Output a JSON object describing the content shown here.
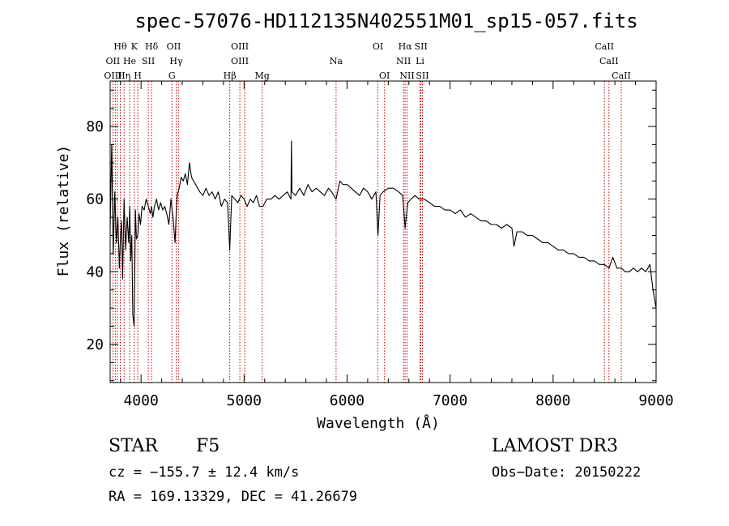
{
  "chart_data": {
    "type": "line",
    "title": "spec-57076-HD112135N402551M01_sp15-057.fits",
    "xlabel": "Wavelength (Å)",
    "ylabel": "Flux (relative)",
    "xlim": [
      3700,
      9000
    ],
    "ylim": [
      9.5,
      92.5
    ],
    "xticks": [
      4000,
      5000,
      6000,
      7000,
      8000,
      9000
    ],
    "yticks": [
      20,
      40,
      60,
      80
    ],
    "x_minor_step": 200,
    "y_minor_step": 5,
    "grid": false,
    "series": [
      {
        "name": "flux",
        "x": [
          3700,
          3715,
          3730,
          3745,
          3760,
          3775,
          3790,
          3800,
          3810,
          3820,
          3835,
          3850,
          3865,
          3880,
          3890,
          3900,
          3910,
          3920,
          3933,
          3945,
          3955,
          3968,
          3980,
          3995,
          4010,
          4030,
          4050,
          4070,
          4090,
          4101,
          4115,
          4130,
          4150,
          4170,
          4190,
          4210,
          4230,
          4250,
          4270,
          4290,
          4310,
          4330,
          4340,
          4350,
          4370,
          4390,
          4410,
          4430,
          4450,
          4470,
          4490,
          4510,
          4530,
          4550,
          4570,
          4600,
          4630,
          4660,
          4690,
          4720,
          4750,
          4780,
          4810,
          4840,
          4861,
          4880,
          4910,
          4940,
          4970,
          5000,
          5030,
          5060,
          5090,
          5120,
          5150,
          5183,
          5220,
          5260,
          5300,
          5340,
          5380,
          5420,
          5455,
          5460,
          5465,
          5500,
          5540,
          5580,
          5620,
          5660,
          5700,
          5740,
          5780,
          5820,
          5850,
          5893,
          5930,
          5960,
          6000,
          6040,
          6080,
          6120,
          6160,
          6200,
          6240,
          6280,
          6300,
          6320,
          6350,
          6400,
          6450,
          6500,
          6540,
          6563,
          6590,
          6620,
          6660,
          6700,
          6750,
          6800,
          6850,
          6900,
          6950,
          7000,
          7050,
          7100,
          7150,
          7200,
          7250,
          7300,
          7350,
          7400,
          7450,
          7500,
          7550,
          7600,
          7620,
          7650,
          7700,
          7750,
          7800,
          7850,
          7900,
          7950,
          8000,
          8050,
          8100,
          8150,
          8200,
          8250,
          8300,
          8350,
          8400,
          8450,
          8498,
          8542,
          8580,
          8620,
          8662,
          8700,
          8740,
          8780,
          8820,
          8860,
          8900,
          8940,
          8970,
          9000
        ],
        "values": [
          52,
          75,
          45,
          62,
          48,
          55,
          41,
          49,
          54,
          38,
          60,
          46,
          55,
          48,
          58,
          43,
          50,
          28,
          25,
          57,
          49,
          50,
          56,
          53,
          58,
          57,
          60,
          58,
          56,
          58,
          55,
          58,
          60,
          57,
          59,
          57,
          58,
          56,
          53,
          60,
          55,
          48,
          55,
          61,
          63,
          66,
          65,
          67,
          64,
          70,
          66,
          65,
          64,
          63,
          62,
          61,
          63,
          61,
          62,
          60,
          62,
          58,
          60,
          59,
          46,
          61,
          60,
          59,
          61,
          60,
          58,
          60,
          59,
          61,
          58,
          58,
          60,
          60,
          61,
          60,
          61,
          62,
          60,
          76,
          62,
          61,
          63,
          61,
          64,
          62,
          63,
          62,
          61,
          63,
          62,
          60,
          65,
          64,
          64,
          63,
          62,
          61,
          63,
          62,
          60,
          62,
          50,
          61,
          62,
          63,
          63,
          62,
          61,
          52,
          59,
          60,
          61,
          60,
          60,
          59,
          58,
          58,
          57,
          57,
          56,
          57,
          55,
          56,
          55,
          54,
          54,
          53,
          53,
          52,
          53,
          52,
          47,
          51,
          51,
          50,
          50,
          49,
          48,
          48,
          47,
          46,
          46,
          45,
          45,
          44,
          44,
          43,
          43,
          42,
          42,
          41,
          44,
          41,
          41,
          40,
          40,
          41,
          40,
          41,
          40,
          42,
          35,
          30
        ]
      }
    ],
    "lines": [
      {
        "name": "Hθ",
        "x": 3798,
        "row": 0
      },
      {
        "name": "K",
        "x": 3934,
        "row": 0
      },
      {
        "name": "Hδ",
        "x": 4102,
        "row": 0
      },
      {
        "name": "OII",
        "x": 4317,
        "row": 0
      },
      {
        "name": "OIII",
        "x": 4959,
        "row": 0
      },
      {
        "name": "OI",
        "x": 6300,
        "row": 0
      },
      {
        "name": "Hα",
        "x": 6563,
        "row": 0
      },
      {
        "name": "SII",
        "x": 6717,
        "row": 0
      },
      {
        "name": "CaII",
        "x": 8498,
        "row": 0
      },
      {
        "name": "OII",
        "x": 3727,
        "row": 1
      },
      {
        "name": "He",
        "x": 3889,
        "row": 1
      },
      {
        "name": "SII",
        "x": 4070,
        "row": 1
      },
      {
        "name": "Hγ",
        "x": 4341,
        "row": 1
      },
      {
        "name": "OIII",
        "x": 4959,
        "row": 1
      },
      {
        "name": "NII",
        "x": 6548,
        "row": 1
      },
      {
        "name": "Li",
        "x": 6708,
        "row": 1
      },
      {
        "name": "CaII",
        "x": 8542,
        "row": 1
      },
      {
        "name": "OIII",
        "x": 3727,
        "row": 2
      },
      {
        "name": "Hη",
        "x": 3835,
        "row": 2
      },
      {
        "name": "H",
        "x": 3968,
        "row": 2
      },
      {
        "name": "G",
        "x": 4300,
        "row": 2
      },
      {
        "name": "Hβ",
        "x": 4861,
        "row": 2
      },
      {
        "name": "Mg",
        "x": 5175,
        "row": 2
      },
      {
        "name": "Na",
        "x": 5893,
        "row": 1
      },
      {
        "name": "OI",
        "x": 6363,
        "row": 2
      },
      {
        "name": "NII",
        "x": 6583,
        "row": 2
      },
      {
        "name": "SII",
        "x": 6731,
        "row": 2
      },
      {
        "name": "CaII",
        "x": 8662,
        "row": 2
      }
    ],
    "line_marker_wavelengths": [
      3727,
      3750,
      3770,
      3798,
      3835,
      3889,
      3934,
      3968,
      4070,
      4102,
      4300,
      4341,
      4363,
      4861,
      4959,
      5007,
      5175,
      5893,
      6300,
      6363,
      6548,
      6563,
      6583,
      6708,
      6717,
      6731,
      8498,
      8542,
      8662
    ]
  },
  "object_class": "STAR",
  "subclass": "F5",
  "survey": "LAMOST DR3",
  "redshift_text": "cz = −155.7 ± 12.4 km/s",
  "obs_date_text": "Obs−Date: 20150222",
  "coords_text": "RA = 169.13329, DEC =  41.26679",
  "colors": {
    "line_marker": "#c00000",
    "trace": "#000000"
  }
}
